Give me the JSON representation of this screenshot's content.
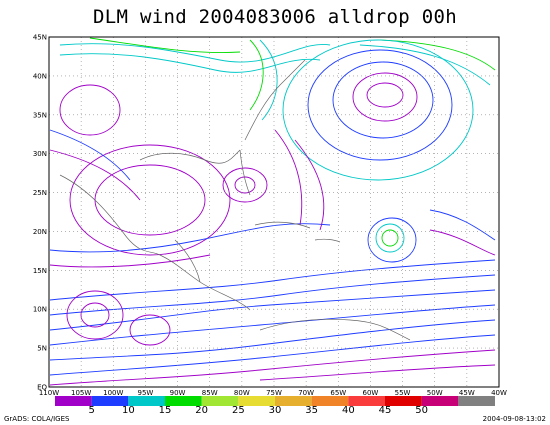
{
  "title": "DLM wind 2004083006 alldrop 00h",
  "lat_labels": [
    "45N",
    "40N",
    "35N",
    "30N",
    "25N",
    "20N",
    "15N",
    "10N",
    "5N",
    "EQ"
  ],
  "lon_labels": [
    "110W",
    "105W",
    "100W",
    "95W",
    "90W",
    "85W",
    "80W",
    "75W",
    "70W",
    "65W",
    "60W",
    "55W",
    "50W",
    "45W",
    "40W"
  ],
  "colorbar": {
    "colors": [
      "#a000c8",
      "#1e3cff",
      "#00c8c8",
      "#00dc00",
      "#a0e632",
      "#e6dc32",
      "#e6af2d",
      "#f08228",
      "#fa3c3c",
      "#e00000",
      "#c80078",
      "#808080"
    ],
    "labels": [
      "5",
      "10",
      "15",
      "20",
      "25",
      "30",
      "35",
      "40",
      "45",
      "50"
    ]
  },
  "credit": "GrADS: COLA/IGES",
  "timestamp": "2004-09-08-13:02"
}
